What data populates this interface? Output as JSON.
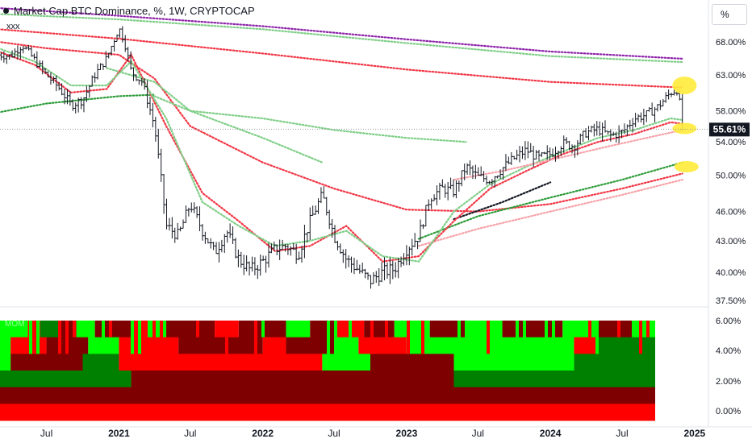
{
  "header": {
    "title": "Market Cap BTC Dominance, %, 1W, CRYPTOCAP",
    "indicator": "xxx",
    "unit_button": "%"
  },
  "colors": {
    "price": "#131722",
    "ma_red": "#f23645",
    "ma_green": "#2e9c3a",
    "ma_light_green": "#7fce87",
    "ma_purple": "#8e24aa",
    "ma_pink": "#f7a1a8",
    "highlight": "#ffeb3b",
    "heat_bright_red": "#ff0000",
    "heat_dark_red": "#7f0000",
    "heat_bright_green": "#00ff00",
    "heat_dark_green": "#008000"
  },
  "chart_data": {
    "type": "line",
    "title": "Market Cap BTC Dominance, %, 1W, CRYPTOCAP",
    "y_axis": {
      "scale": "log",
      "ticks": [
        "37.50%",
        "40.00%",
        "43.00%",
        "46.00%",
        "50.00%",
        "54.00%",
        "58.00%",
        "63.00%",
        "68.00%"
      ],
      "range": [
        37.0,
        73.5
      ]
    },
    "x_axis": {
      "ticks": [
        "Jul",
        "2021",
        "Jul",
        "2022",
        "Jul",
        "2023",
        "Jul",
        "2024",
        "Jul",
        "2025"
      ],
      "range": [
        "2020-03",
        "2025-02"
      ]
    },
    "last_value": "55.61%",
    "price": {
      "dates": [
        "2020-03-01",
        "2020-04-01",
        "2020-05-01",
        "2020-06-01",
        "2020-07-01",
        "2020-08-01",
        "2020-09-01",
        "2020-10-01",
        "2020-11-01",
        "2020-12-01",
        "2021-01-01",
        "2021-01-15",
        "2021-02-01",
        "2021-03-01",
        "2021-04-01",
        "2021-05-01",
        "2021-06-01",
        "2021-07-01",
        "2021-08-01",
        "2021-09-01",
        "2021-10-01",
        "2021-11-01",
        "2021-12-01",
        "2022-01-01",
        "2022-02-01",
        "2022-03-01",
        "2022-04-01",
        "2022-05-01",
        "2022-06-01",
        "2022-07-01",
        "2022-08-01",
        "2022-09-01",
        "2022-10-01",
        "2022-11-01",
        "2022-12-01",
        "2023-01-01",
        "2023-02-01",
        "2023-03-01",
        "2023-04-01",
        "2023-05-01",
        "2023-06-01",
        "2023-07-01",
        "2023-08-01",
        "2023-09-01",
        "2023-10-01",
        "2023-11-01",
        "2023-12-01",
        "2024-01-01",
        "2024-02-01",
        "2024-03-01",
        "2024-04-01",
        "2024-05-01",
        "2024-06-01",
        "2024-07-01",
        "2024-08-01",
        "2024-09-01",
        "2024-10-01",
        "2024-11-01",
        "2024-11-20",
        "2024-12-01"
      ],
      "values": [
        66.0,
        65.8,
        67.5,
        65.2,
        63.0,
        61.2,
        58.8,
        59.5,
        63.0,
        65.5,
        70.2,
        68.0,
        63.5,
        62.0,
        56.0,
        44.5,
        43.5,
        46.8,
        44.0,
        41.8,
        44.0,
        41.2,
        40.2,
        41.0,
        42.2,
        42.5,
        41.7,
        45.0,
        47.8,
        43.5,
        41.2,
        40.2,
        39.2,
        40.0,
        40.3,
        42.2,
        43.5,
        47.5,
        48.5,
        48.2,
        51.0,
        49.8,
        49.5,
        50.8,
        52.0,
        53.0,
        52.0,
        52.5,
        53.8,
        53.5,
        55.2,
        55.6,
        54.8,
        55.2,
        57.0,
        57.5,
        58.6,
        60.5,
        61.0,
        55.61
      ]
    },
    "series": [
      {
        "style": "dotted",
        "color": "purple",
        "x": [
          "2020-03-01",
          "2021-01-01",
          "2022-01-01",
          "2023-01-01",
          "2024-01-01",
          "2024-12-01"
        ],
        "values": [
          73.5,
          72.2,
          70.5,
          68.4,
          66.5,
          65.4
        ]
      },
      {
        "style": "dotted",
        "color": "light_green",
        "x": [
          "2020-03-01",
          "2021-01-01",
          "2022-01-01",
          "2023-01-01",
          "2024-01-01",
          "2024-12-01"
        ],
        "values": [
          72.5,
          71.6,
          70.0,
          67.8,
          65.8,
          64.9
        ]
      },
      {
        "style": "dotted",
        "color": "red",
        "x": [
          "2020-03-01",
          "2021-01-01",
          "2022-01-01",
          "2023-01-01",
          "2024-01-01",
          "2024-12-01"
        ],
        "values": [
          70.0,
          68.5,
          66.2,
          63.8,
          62.0,
          61.2
        ]
      },
      {
        "style": "dotted",
        "color": "red",
        "x": [
          "2020-03-01",
          "2020-07-01",
          "2021-01-01",
          "2021-04-01",
          "2021-07-01",
          "2022-01-01",
          "2022-07-01",
          "2023-01-01",
          "2023-07-01",
          "2024-01-01",
          "2024-07-01",
          "2024-12-01"
        ],
        "values": [
          68.0,
          67.0,
          66.0,
          62.5,
          56.0,
          51.5,
          48.5,
          46.2,
          46.0,
          46.8,
          48.5,
          50.2
        ]
      },
      {
        "style": "dotted",
        "color": "light_green",
        "x": [
          "2020-12-01",
          "2021-04-01",
          "2021-07-01",
          "2022-01-01",
          "2022-06-01"
        ],
        "values": [
          64.0,
          62.0,
          58.0,
          54.5,
          51.5
        ]
      },
      {
        "style": "dotted",
        "color": "light_green",
        "x": [
          "2021-04-01",
          "2021-07-01",
          "2022-01-01",
          "2022-07-01",
          "2023-01-01",
          "2023-06-01"
        ],
        "values": [
          60.0,
          58.0,
          57.0,
          55.5,
          54.5,
          54.0
        ]
      },
      {
        "style": "dotted",
        "color": "green",
        "x": [
          "2020-03-01",
          "2020-07-01",
          "2021-01-01",
          "2021-04-01"
        ],
        "values": [
          57.8,
          59.0,
          60.0,
          60.2
        ]
      },
      {
        "style": "dotted",
        "color": "green",
        "x": [
          "2023-02-01",
          "2023-07-01",
          "2024-01-01",
          "2024-07-01",
          "2024-12-01"
        ],
        "values": [
          43.2,
          45.5,
          47.5,
          49.5,
          51.5
        ]
      },
      {
        "style": "dotted",
        "color": "pink",
        "x": [
          "2023-02-01",
          "2023-07-01",
          "2024-01-01",
          "2024-07-01",
          "2024-12-01"
        ],
        "values": [
          42.5,
          44.2,
          46.0,
          47.8,
          49.5
        ]
      },
      {
        "style": "dotted",
        "color": "price",
        "x": [
          "2023-05-01",
          "2023-09-01",
          "2024-01-01"
        ],
        "values": [
          45.2,
          47.0,
          49.2
        ]
      },
      {
        "style": "dotted",
        "color": "red",
        "x": [
          "2020-03-01",
          "2020-06-01",
          "2020-09-01",
          "2020-12-01",
          "2021-02-01",
          "2021-05-01",
          "2021-08-01",
          "2021-11-01",
          "2022-02-01",
          "2022-05-01",
          "2022-08-01",
          "2022-11-01",
          "2023-02-01",
          "2023-05-01",
          "2023-08-01",
          "2023-11-01",
          "2024-02-01",
          "2024-05-01",
          "2024-08-01",
          "2024-11-01",
          "2024-12-01"
        ],
        "values": [
          66.5,
          64.5,
          60.5,
          61.0,
          66.0,
          56.0,
          48.0,
          45.0,
          42.0,
          42.5,
          44.5,
          41.0,
          41.5,
          45.0,
          48.5,
          50.5,
          52.5,
          54.0,
          55.0,
          56.5,
          56.3
        ]
      },
      {
        "style": "dotted",
        "color": "light_green",
        "x": [
          "2020-03-01",
          "2020-06-01",
          "2020-09-01",
          "2020-12-01",
          "2021-02-01",
          "2021-05-01",
          "2021-08-01",
          "2021-11-01",
          "2022-02-01",
          "2022-05-01",
          "2022-08-01",
          "2022-11-01",
          "2023-02-01",
          "2023-05-01",
          "2023-08-01",
          "2023-11-01",
          "2024-02-01",
          "2024-05-01",
          "2024-08-01",
          "2024-11-01",
          "2024-12-01"
        ],
        "values": [
          67.0,
          65.0,
          61.5,
          61.5,
          65.0,
          57.0,
          47.0,
          44.5,
          42.5,
          43.0,
          44.0,
          41.5,
          41.0,
          46.0,
          49.0,
          51.0,
          52.8,
          54.5,
          55.5,
          57.0,
          56.8
        ]
      },
      {
        "style": "dotted",
        "color": "pink",
        "x": [
          "2023-05-01",
          "2023-09-01",
          "2024-01-01",
          "2024-06-01",
          "2024-12-01"
        ],
        "values": [
          49.5,
          50.5,
          51.8,
          53.5,
          55.5
        ]
      }
    ],
    "highlights": [
      {
        "date": "2024-11-20",
        "value": 61.5,
        "shape": "ellipse"
      },
      {
        "date": "2024-11-20",
        "value": 55.7,
        "shape": "ellipse"
      },
      {
        "date": "2024-11-25",
        "value": 51.0,
        "shape": "ellipse"
      }
    ],
    "sub_panel": {
      "label": "MOM",
      "y_ticks": [
        "6.00%",
        "4.00%",
        "2.00%",
        "0.00%"
      ],
      "rows": [
        {
          "segments": [
            [
              "2020-03-01",
              "2020-05-15",
              "G"
            ],
            [
              "2020-05-15",
              "2020-06-15",
              "R"
            ],
            [
              "2020-06-15",
              "2020-08-01",
              "g"
            ],
            [
              "2020-08-01",
              "2020-09-15",
              "r"
            ],
            [
              "2020-09-15",
              "2020-11-01",
              "G"
            ],
            [
              "2020-11-01",
              "2021-02-01",
              "r"
            ],
            [
              "2021-02-01",
              "2021-03-15",
              "R"
            ],
            [
              "2021-03-15",
              "2021-05-01",
              "G"
            ],
            [
              "2021-05-01",
              "2021-09-01",
              "r"
            ],
            [
              "2021-09-01",
              "2021-11-01",
              "R"
            ],
            [
              "2021-11-01",
              "2022-03-01",
              "r"
            ],
            [
              "2022-03-01",
              "2022-05-01",
              "G"
            ],
            [
              "2022-05-01",
              "2022-07-01",
              "r"
            ],
            [
              "2022-07-01",
              "2022-09-15",
              "R"
            ],
            [
              "2022-09-15",
              "2022-12-01",
              "r"
            ],
            [
              "2022-12-01",
              "2023-03-01",
              "G"
            ],
            [
              "2023-03-01",
              "2023-06-01",
              "r"
            ],
            [
              "2023-06-01",
              "2023-09-01",
              "G"
            ],
            [
              "2023-09-01",
              "2024-02-01",
              "r"
            ],
            [
              "2024-02-01",
              "2024-05-01",
              "G"
            ],
            [
              "2024-05-01",
              "2024-08-01",
              "r"
            ],
            [
              "2024-08-01",
              "2024-11-01",
              "G"
            ],
            [
              "2024-11-01",
              "2024-12-01",
              "R"
            ]
          ]
        },
        {
          "segments": [
            [
              "2020-03-01",
              "2020-04-01",
              "G"
            ],
            [
              "2020-04-01",
              "2020-07-01",
              "R"
            ],
            [
              "2020-07-01",
              "2020-10-15",
              "r"
            ],
            [
              "2020-10-15",
              "2021-01-01",
              "G"
            ],
            [
              "2021-01-01",
              "2021-06-01",
              "R"
            ],
            [
              "2021-06-01",
              "2022-01-01",
              "r"
            ],
            [
              "2022-01-01",
              "2022-03-01",
              "R"
            ],
            [
              "2022-03-01",
              "2022-07-01",
              "r"
            ],
            [
              "2022-07-01",
              "2022-09-01",
              "G"
            ],
            [
              "2022-09-01",
              "2023-01-01",
              "R"
            ],
            [
              "2023-01-01",
              "2023-05-01",
              "G"
            ],
            [
              "2023-05-01",
              "2024-03-01",
              "G"
            ],
            [
              "2024-03-01",
              "2024-05-01",
              "R"
            ],
            [
              "2024-05-01",
              "2024-12-01",
              "g"
            ]
          ]
        },
        {
          "segments": [
            [
              "2020-03-01",
              "2020-04-01",
              "G"
            ],
            [
              "2020-04-01",
              "2020-10-01",
              "r"
            ],
            [
              "2020-10-01",
              "2021-01-01",
              "g"
            ],
            [
              "2021-01-01",
              "2022-06-01",
              "R"
            ],
            [
              "2022-06-01",
              "2022-10-01",
              "G"
            ],
            [
              "2022-10-01",
              "2023-05-01",
              "r"
            ],
            [
              "2023-05-01",
              "2024-03-01",
              "G"
            ],
            [
              "2024-03-01",
              "2024-12-01",
              "g"
            ]
          ]
        },
        {
          "segments": [
            [
              "2020-03-01",
              "2021-02-01",
              "g"
            ],
            [
              "2021-02-01",
              "2023-05-01",
              "r"
            ],
            [
              "2023-05-01",
              "2024-12-01",
              "g"
            ]
          ]
        },
        {
          "segments": [
            [
              "2020-03-01",
              "2024-12-01",
              "r"
            ]
          ]
        },
        {
          "segments": [
            [
              "2020-03-01",
              "2024-12-01",
              "R"
            ]
          ]
        }
      ]
    }
  }
}
